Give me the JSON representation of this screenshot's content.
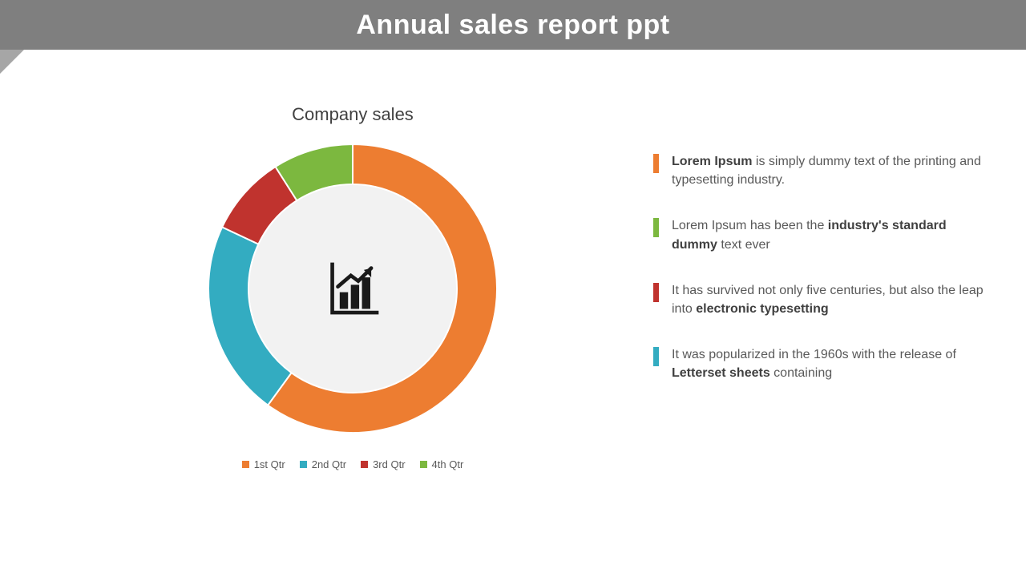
{
  "header": {
    "title": "Annual sales report ppt",
    "bar_bg": "#7f7f7f",
    "title_color": "#ffffff",
    "title_fontsize": 34,
    "corner_color": "#a6a6a6"
  },
  "chart": {
    "type": "donut",
    "title": "Company sales",
    "title_fontsize": 22,
    "title_color": "#404040",
    "outer_radius": 180,
    "inner_radius": 130,
    "inner_fill": "#f2f2f2",
    "stroke": "#ffffff",
    "stroke_width": 2,
    "slices": [
      {
        "label": "1st Qtr",
        "value": 60,
        "color": "#ed7d31"
      },
      {
        "label": "2nd Qtr",
        "value": 22,
        "color": "#33acc1"
      },
      {
        "label": "3rd Qtr",
        "value": 9,
        "color": "#c0332e"
      },
      {
        "label": "4th Qtr",
        "value": 9,
        "color": "#7cb83f"
      }
    ],
    "legend_fontsize": 13,
    "legend_color": "#595959",
    "legend_swatch": 9,
    "icon": "bar-chart-growth",
    "icon_color": "#1a1a1a"
  },
  "bullets": [
    {
      "color": "#ed7d31",
      "html": "<b>Lorem Ipsum</b> is simply dummy text of the printing and typesetting industry."
    },
    {
      "color": "#7cb83f",
      "html": "Lorem Ipsum has been the <b>industry's standard dummy</b> text ever"
    },
    {
      "color": "#c0332e",
      "html": "It has survived not only five centuries, but also the leap into <b>electronic typesetting</b>"
    },
    {
      "color": "#33acc1",
      "html": "It was popularized in the 1960s with the release of <b>Letterset sheets</b> containing"
    }
  ],
  "bullet_fontsize": 16,
  "bullet_color": "#595959",
  "background_color": "#ffffff"
}
